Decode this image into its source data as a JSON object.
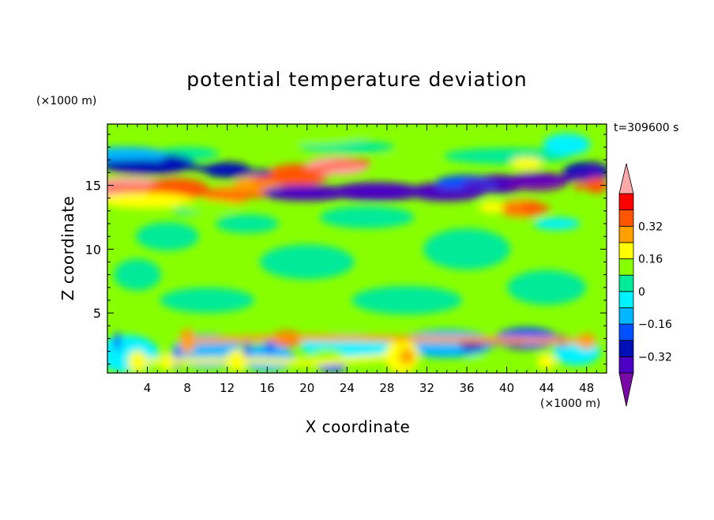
{
  "chart_data": {
    "type": "heatmap",
    "title": "potential temperature deviation",
    "xlabel": "X coordinate",
    "ylabel": "Z coordinate",
    "x_unit": "(×1000 m)",
    "z_unit": "(×1000 m)",
    "time_label": "t=309600 s",
    "xlim": [
      0,
      50
    ],
    "ylim": [
      0.3,
      19.8
    ],
    "x_ticks": [
      4,
      8,
      12,
      16,
      20,
      24,
      28,
      32,
      36,
      40,
      44,
      48
    ],
    "y_ticks": [
      5,
      10,
      15
    ],
    "colorbar": {
      "levels": [
        -0.4,
        -0.32,
        -0.24,
        -0.16,
        -0.08,
        0,
        0.08,
        0.16,
        0.24,
        0.32,
        0.4
      ],
      "tick_labels": [
        "0.32",
        "0.16",
        "0",
        "−0.16",
        "−0.32"
      ],
      "tick_values": [
        0.32,
        0.16,
        0,
        -0.16,
        -0.32
      ],
      "colors_low_to_high": [
        "#7a0aa6",
        "#4b00c2",
        "#0010b8",
        "#0050ff",
        "#00b8ff",
        "#00f2ff",
        "#00ea9a",
        "#88ff00",
        "#ffff00",
        "#ffa000",
        "#ff5500",
        "#ff0000",
        "#ffaaaa"
      ],
      "extend": "both"
    },
    "features": [
      {
        "x": [
          0,
          4,
          8,
          11,
          13,
          16
        ],
        "z": [
          16.7,
          16.8,
          16.5,
          16.2,
          16.0,
          16.0
        ],
        "value": -0.3
      },
      {
        "x": [
          0,
          3,
          8,
          12,
          16
        ],
        "z": [
          14.8,
          14.8,
          14.6,
          14.2,
          14.3
        ],
        "value": 0.36
      },
      {
        "x": [
          15,
          19,
          23,
          26
        ],
        "z": [
          15.3,
          15.9,
          16.6,
          16.8
        ],
        "value": 0.38
      },
      {
        "x": [
          16,
          22,
          28,
          34,
          38
        ],
        "z": [
          14.4,
          14.6,
          14.6,
          14.5,
          14.6
        ],
        "value": -0.35
      },
      {
        "x": [
          36,
          40,
          44,
          47,
          49
        ],
        "z": [
          15.1,
          15.4,
          15.5,
          15.6,
          16.2
        ],
        "value": -0.38
      },
      {
        "x": [
          40,
          42,
          44
        ],
        "z": [
          13.1,
          13.1,
          13.2
        ],
        "value": 0.34
      },
      {
        "x": [
          47,
          49
        ],
        "z": [
          14.9,
          15.0
        ],
        "value": 0.33
      },
      {
        "x": [
          36,
          41,
          44
        ],
        "z": [
          2.6,
          2.8,
          2.9
        ],
        "value": -0.26
      },
      {
        "x": [
          4,
          14,
          21,
          29
        ],
        "z": [
          1.2,
          1.3,
          1.1,
          1.6
        ],
        "value": 0.18
      },
      {
        "x": [
          8,
          18,
          48
        ],
        "z": [
          2.8,
          3.1,
          2.8
        ],
        "value": 0.28
      }
    ]
  }
}
